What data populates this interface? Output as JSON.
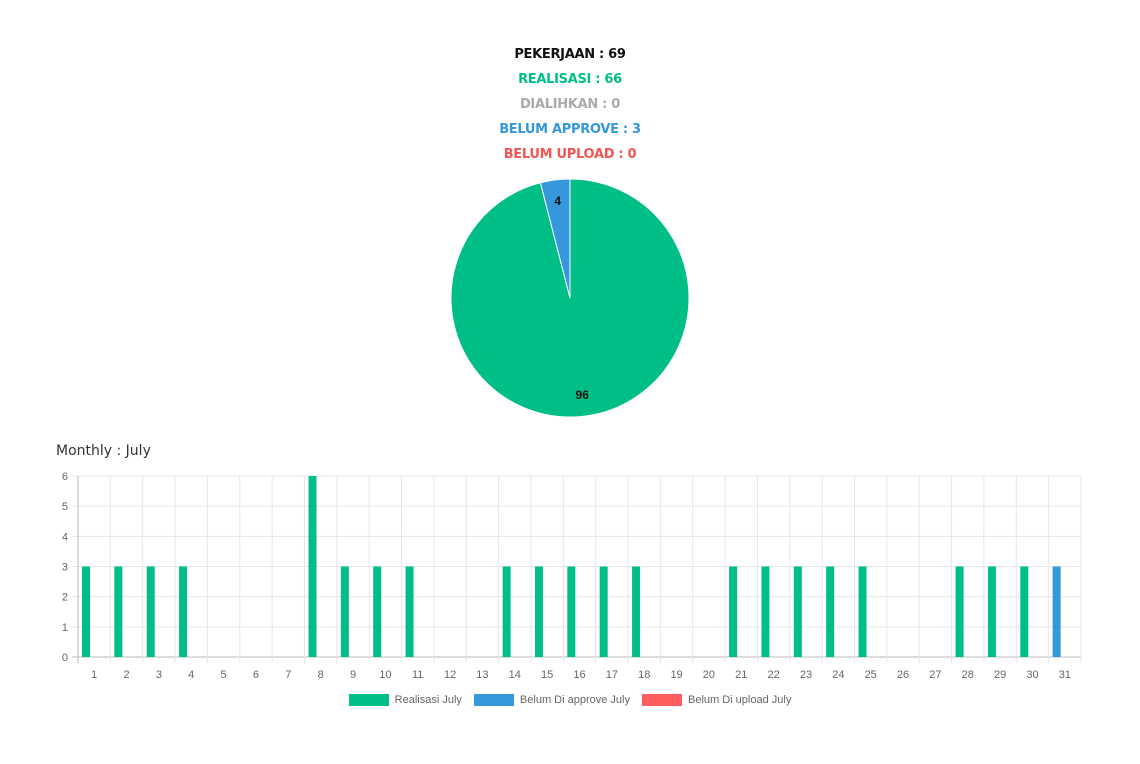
{
  "summary": {
    "pekerjaan": "PEKERJAAN : 69",
    "realisasi": "REALISASI : 66",
    "dialihkan": "DIALIHKAN : 0",
    "belum_approve": "BELUM APPROVE : 3",
    "belum_upload": "BELUM UPLOAD : 0"
  },
  "monthly_title": "Monthly : July",
  "colors": {
    "realisasi": "#00be88",
    "approve": "#3498db",
    "upload": "#ff5e5e"
  },
  "chart_data": [
    {
      "type": "pie",
      "labels": [
        "Realisasi",
        "Belum Approve"
      ],
      "values": [
        96,
        4
      ],
      "data_labels": [
        "96",
        "4"
      ],
      "colors": [
        "#00be88",
        "#3498db"
      ]
    },
    {
      "type": "bar",
      "title": "Monthly : July",
      "categories": [
        "1",
        "2",
        "3",
        "4",
        "5",
        "6",
        "7",
        "8",
        "9",
        "10",
        "11",
        "12",
        "13",
        "14",
        "15",
        "16",
        "17",
        "18",
        "19",
        "20",
        "21",
        "22",
        "23",
        "24",
        "25",
        "26",
        "27",
        "28",
        "29",
        "30",
        "31"
      ],
      "series": [
        {
          "name": "Realisasi July",
          "color": "#00be88",
          "values": [
            3,
            3,
            3,
            3,
            0,
            0,
            0,
            6,
            3,
            3,
            3,
            0,
            0,
            3,
            3,
            3,
            3,
            3,
            0,
            0,
            3,
            3,
            3,
            3,
            3,
            0,
            0,
            3,
            3,
            3,
            0
          ]
        },
        {
          "name": "Belum Di approve July",
          "color": "#3498db",
          "values": [
            0,
            0,
            0,
            0,
            0,
            0,
            0,
            0,
            0,
            0,
            0,
            0,
            0,
            0,
            0,
            0,
            0,
            0,
            0,
            0,
            0,
            0,
            0,
            0,
            0,
            0,
            0,
            0,
            0,
            0,
            3
          ]
        },
        {
          "name": "Belum Di upload July",
          "color": "#ff5e5e",
          "values": [
            0,
            0,
            0,
            0,
            0,
            0,
            0,
            0,
            0,
            0,
            0,
            0,
            0,
            0,
            0,
            0,
            0,
            0,
            0,
            0,
            0,
            0,
            0,
            0,
            0,
            0,
            0,
            0,
            0,
            0,
            0
          ]
        }
      ],
      "ylim": [
        0,
        6
      ],
      "yticks": [
        "0",
        "1",
        "2",
        "3",
        "4",
        "5",
        "6"
      ],
      "grid": true,
      "legend": "bottom"
    }
  ]
}
